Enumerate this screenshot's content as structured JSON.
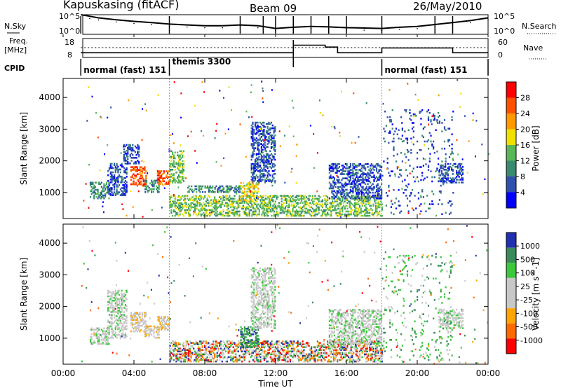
{
  "header": {
    "station": "Kapuskasing (fitACF)",
    "beam": "Beam 09",
    "date": "26/May/2010"
  },
  "chart_data": [
    {
      "type": "line",
      "panel": "noise",
      "left_label": "N.Sky",
      "right_label": "N.Search",
      "left_ticks": [
        "10^5",
        "10^0"
      ],
      "right_ticks": [
        "10^5",
        "10^0"
      ],
      "x": [
        1,
        1.5,
        2,
        3,
        4,
        5,
        6,
        7,
        8,
        9,
        10,
        11,
        12,
        13,
        14,
        15,
        16,
        17,
        18,
        19,
        20,
        21,
        22,
        23,
        24
      ],
      "series": [
        {
          "values": [
            5.0,
            4.6,
            4.2,
            3.7,
            3.3,
            3.0,
            2.6,
            2.4,
            2.2,
            2.2,
            2.4,
            2.2,
            1.5,
            1.8,
            2.0,
            1.9,
            1.7,
            1.6,
            1.5,
            1.8,
            2.0,
            2.5,
            3.0,
            3.5,
            4.2
          ]
        }
      ],
      "spikes": [
        1,
        6,
        10,
        11.3,
        12,
        13,
        14,
        15,
        16,
        18,
        21,
        22
      ]
    },
    {
      "type": "line",
      "panel": "frequency",
      "left_label": "Freq.",
      "left_unit": "[MHz]",
      "right_label": "Nave",
      "left_ticks": [
        "18",
        "8"
      ],
      "right_ticks": [
        "60",
        "0"
      ],
      "x": [
        1,
        6,
        13.0,
        14.8,
        15.5,
        18,
        22,
        24
      ],
      "series": [
        {
          "values": [
            10.5,
            10.5,
            14.5,
            13.5,
            10.5,
            13.0,
            10.5,
            10.5
          ]
        }
      ]
    },
    {
      "type": "table",
      "panel": "cpid",
      "label": "CPID",
      "segments": [
        {
          "start": 1,
          "end": 6,
          "text": "normal (fast) 151"
        },
        {
          "start": 6,
          "end": 18,
          "text": "themis 3300"
        },
        {
          "start": 18,
          "end": 24,
          "text": "normal (fast) 151"
        }
      ]
    },
    {
      "type": "heatmap",
      "panel": "power",
      "ylabel": "Slant Range [km]",
      "yticks": [
        1000,
        2000,
        3000,
        4000
      ],
      "ylim": [
        180,
        4600
      ],
      "colorbar": {
        "label": "Power [dB]",
        "ticks": [
          "28",
          "24",
          "20",
          "16",
          "12",
          "8",
          "4"
        ]
      },
      "regions": [
        {
          "t0": 1.5,
          "t1": 2.6,
          "r0": 800,
          "r1": 1300,
          "level": 2
        },
        {
          "t0": 2.5,
          "t1": 3.6,
          "r0": 900,
          "r1": 1900,
          "level": 1
        },
        {
          "t0": 3.4,
          "t1": 4.3,
          "r0": 1900,
          "r1": 2500,
          "level": 1
        },
        {
          "t0": 3.8,
          "t1": 4.7,
          "r0": 1200,
          "r1": 1800,
          "level": 6
        },
        {
          "t0": 4.6,
          "t1": 5.4,
          "r0": 1000,
          "r1": 1400,
          "level": 2
        },
        {
          "t0": 5.3,
          "t1": 6.0,
          "r0": 1250,
          "r1": 1700,
          "level": 6
        },
        {
          "t0": 6.0,
          "t1": 6.8,
          "r0": 1300,
          "r1": 2300,
          "level": 3
        },
        {
          "t0": 6.0,
          "t1": 18.0,
          "r0": 250,
          "r1": 900,
          "level": 3
        },
        {
          "t0": 7.0,
          "t1": 10.0,
          "r0": 1000,
          "r1": 1200,
          "level": 2
        },
        {
          "t0": 10.0,
          "t1": 11.0,
          "r0": 700,
          "r1": 1350,
          "level": 4
        },
        {
          "t0": 10.6,
          "t1": 12.0,
          "r0": 1300,
          "r1": 3200,
          "level": 1
        },
        {
          "t0": 15.0,
          "t1": 18.0,
          "r0": 800,
          "r1": 1900,
          "level": 1
        },
        {
          "t0": 21.2,
          "t1": 22.6,
          "r0": 1300,
          "r1": 1900,
          "level": 1
        },
        {
          "t0": 18.0,
          "t1": 22.0,
          "r0": 300,
          "r1": 3600,
          "level": 1,
          "sparse": true
        }
      ]
    },
    {
      "type": "heatmap",
      "panel": "velocity",
      "ylabel": "Slant Range [km]",
      "yticks": [
        1000,
        2000,
        3000,
        4000
      ],
      "ylim": [
        180,
        4600
      ],
      "colorbar": {
        "label": "Velocity [m s^-1]",
        "ticks": [
          "1000",
          "500",
          "100",
          "25",
          "-25",
          "-100",
          "-500",
          "-1000"
        ]
      },
      "regions": [
        {
          "t0": 1.5,
          "t1": 2.6,
          "r0": 800,
          "r1": 1300,
          "level": 4
        },
        {
          "t0": 2.5,
          "t1": 3.6,
          "r0": 1000,
          "r1": 2500,
          "level": 4
        },
        {
          "t0": 3.8,
          "t1": 4.7,
          "r0": 1200,
          "r1": 1800,
          "level": 3
        },
        {
          "t0": 4.6,
          "t1": 5.4,
          "r0": 1000,
          "r1": 1400,
          "level": 3
        },
        {
          "t0": 5.3,
          "t1": 6.0,
          "r0": 1250,
          "r1": 1700,
          "level": 3
        },
        {
          "t0": 6.0,
          "t1": 18.0,
          "r0": 250,
          "r1": 900,
          "level": 4,
          "mixed": true
        },
        {
          "t0": 10.0,
          "t1": 11.0,
          "r0": 700,
          "r1": 1350,
          "level": 6
        },
        {
          "t0": 10.6,
          "t1": 12.0,
          "r0": 1300,
          "r1": 3200,
          "level": 4
        },
        {
          "t0": 15.0,
          "t1": 18.0,
          "r0": 800,
          "r1": 1900,
          "level": 4
        },
        {
          "t0": 21.2,
          "t1": 22.6,
          "r0": 1300,
          "r1": 1900,
          "level": 4
        },
        {
          "t0": 18.0,
          "t1": 22.0,
          "r0": 300,
          "r1": 3600,
          "level": 5,
          "sparse": true
        }
      ]
    }
  ],
  "xaxis": {
    "label": "Time UT",
    "ticks": [
      {
        "t": 0,
        "label": "00:00"
      },
      {
        "t": 4,
        "label": "04:00"
      },
      {
        "t": 8,
        "label": "08:00"
      },
      {
        "t": 12,
        "label": "12:00"
      },
      {
        "t": 16,
        "label": "16:00"
      },
      {
        "t": 20,
        "label": "20:00"
      },
      {
        "t": 24,
        "label": "00:00"
      }
    ]
  },
  "colors": {
    "power_scale": [
      "#0000ff",
      "#3050b0",
      "#3a8a70",
      "#58b858",
      "#f0e000",
      "#ff9900",
      "#ff5000",
      "#ff0000"
    ],
    "velocity_scale": [
      "#ff0000",
      "#ff6a00",
      "#ffa500",
      "#c8c8c8",
      "#c8c8c8",
      "#3cc83c",
      "#3a8a5a",
      "#2030b0"
    ]
  }
}
